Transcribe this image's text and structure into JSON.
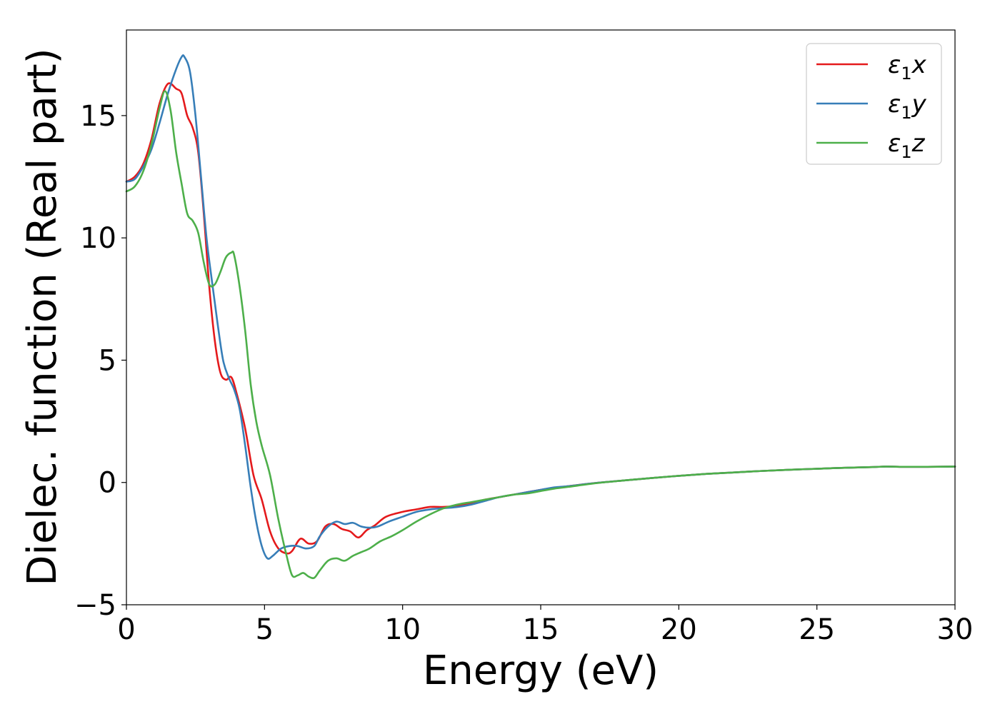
{
  "chart_data": {
    "type": "line",
    "title": "",
    "xlabel": "Energy (eV)",
    "ylabel": "Dielec. function (Real part)",
    "xlim": [
      0,
      30
    ],
    "ylim": [
      -5,
      18.5
    ],
    "xticks": [
      0,
      5,
      10,
      15,
      20,
      25,
      30
    ],
    "yticks": [
      -5,
      0,
      5,
      10,
      15
    ],
    "grid": false,
    "legend_position": "top-right",
    "series": [
      {
        "name": "ε₁x",
        "legend": {
          "sym": "ε",
          "sub": "1",
          "var": "x"
        },
        "color": "#e41a1c",
        "x": [
          0,
          0.3,
          0.6,
          0.9,
          1.2,
          1.5,
          1.8,
          2.0,
          2.2,
          2.4,
          2.6,
          2.8,
          3.0,
          3.2,
          3.4,
          3.6,
          3.8,
          4.0,
          4.3,
          4.6,
          4.9,
          5.2,
          5.5,
          5.8,
          6.0,
          6.3,
          6.6,
          6.9,
          7.2,
          7.5,
          7.8,
          8.1,
          8.4,
          8.7,
          9.0,
          9.4,
          10.0,
          10.5,
          11.0,
          11.5,
          12.0,
          12.5,
          13.0,
          13.5,
          14.0,
          14.5,
          15.0,
          15.5,
          16.0,
          17.0,
          18.0,
          19.0,
          20.0,
          21.0,
          22.0,
          23.0,
          24.0,
          25.0,
          26.0,
          27.0,
          27.5,
          28.0,
          29.0,
          30.0
        ],
        "y": [
          12.3,
          12.5,
          13.0,
          14.0,
          15.5,
          16.3,
          16.1,
          15.9,
          15.0,
          14.5,
          13.5,
          11.0,
          8.0,
          5.8,
          4.5,
          4.2,
          4.3,
          3.6,
          2.2,
          0.3,
          -0.7,
          -2.0,
          -2.7,
          -2.9,
          -2.8,
          -2.3,
          -2.5,
          -2.4,
          -1.8,
          -1.7,
          -1.9,
          -2.0,
          -2.25,
          -1.95,
          -1.75,
          -1.4,
          -1.2,
          -1.1,
          -1.0,
          -1.0,
          -0.95,
          -0.85,
          -0.7,
          -0.6,
          -0.5,
          -0.4,
          -0.3,
          -0.22,
          -0.15,
          -0.02,
          0.08,
          0.18,
          0.27,
          0.35,
          0.41,
          0.47,
          0.52,
          0.56,
          0.6,
          0.63,
          0.65,
          0.64,
          0.64,
          0.65
        ]
      },
      {
        "name": "ε₁y",
        "legend": {
          "sym": "ε",
          "sub": "1",
          "var": "y"
        },
        "color": "#377eb8",
        "x": [
          0,
          0.3,
          0.6,
          0.9,
          1.2,
          1.5,
          1.8,
          2.0,
          2.1,
          2.3,
          2.5,
          2.7,
          2.9,
          3.1,
          3.3,
          3.5,
          3.7,
          3.9,
          4.1,
          4.3,
          4.5,
          4.7,
          4.9,
          5.1,
          5.3,
          5.6,
          5.9,
          6.2,
          6.5,
          6.8,
          7.0,
          7.3,
          7.6,
          7.9,
          8.2,
          8.5,
          8.8,
          9.1,
          9.5,
          10.0,
          10.5,
          11.0,
          11.5,
          12.0,
          12.5,
          13.0,
          13.5,
          14.0,
          14.5,
          15.0,
          15.5,
          16.0,
          17.0,
          18.0,
          19.0,
          20.0,
          21.0,
          22.0,
          23.0,
          24.0,
          25.0,
          26.0,
          27.0,
          27.5,
          28.0,
          29.0,
          30.0
        ],
        "y": [
          12.3,
          12.4,
          12.9,
          13.6,
          14.7,
          15.9,
          16.9,
          17.4,
          17.4,
          16.8,
          15.0,
          12.5,
          10.0,
          8.2,
          6.5,
          5.0,
          4.3,
          3.8,
          3.0,
          1.5,
          -0.2,
          -1.6,
          -2.6,
          -3.1,
          -3.0,
          -2.7,
          -2.6,
          -2.6,
          -2.7,
          -2.6,
          -2.2,
          -1.8,
          -1.6,
          -1.7,
          -1.65,
          -1.8,
          -1.85,
          -1.8,
          -1.6,
          -1.4,
          -1.2,
          -1.1,
          -1.05,
          -1.0,
          -0.9,
          -0.75,
          -0.6,
          -0.5,
          -0.4,
          -0.3,
          -0.2,
          -0.15,
          -0.02,
          0.08,
          0.18,
          0.27,
          0.35,
          0.41,
          0.47,
          0.52,
          0.56,
          0.6,
          0.63,
          0.65,
          0.64,
          0.64,
          0.65
        ]
      },
      {
        "name": "ε₁z",
        "legend": {
          "sym": "ε",
          "sub": "1",
          "var": "z"
        },
        "color": "#4daf4a",
        "x": [
          0,
          0.3,
          0.6,
          0.9,
          1.2,
          1.4,
          1.6,
          1.8,
          2.0,
          2.2,
          2.4,
          2.6,
          2.8,
          3.0,
          3.2,
          3.4,
          3.6,
          3.8,
          3.9,
          4.1,
          4.3,
          4.5,
          4.7,
          4.9,
          5.2,
          5.5,
          5.8,
          6.0,
          6.2,
          6.4,
          6.6,
          6.8,
          7.0,
          7.3,
          7.6,
          7.9,
          8.2,
          8.5,
          8.8,
          9.2,
          9.6,
          10.0,
          10.5,
          11.0,
          11.5,
          12.0,
          12.5,
          13.0,
          13.5,
          14.0,
          14.5,
          15.0,
          15.5,
          16.0,
          17.0,
          18.0,
          19.0,
          20.0,
          21.0,
          22.0,
          23.0,
          24.0,
          25.0,
          26.0,
          27.0,
          27.5,
          28.0,
          29.0,
          30.0
        ],
        "y": [
          11.9,
          12.1,
          12.7,
          13.8,
          15.3,
          16.0,
          15.2,
          13.5,
          12.2,
          11.0,
          10.7,
          10.2,
          9.0,
          8.1,
          8.1,
          8.6,
          9.2,
          9.4,
          9.3,
          8.0,
          6.2,
          4.0,
          2.5,
          1.5,
          0.3,
          -1.5,
          -3.0,
          -3.8,
          -3.8,
          -3.7,
          -3.85,
          -3.9,
          -3.6,
          -3.2,
          -3.1,
          -3.2,
          -3.0,
          -2.85,
          -2.7,
          -2.4,
          -2.2,
          -1.95,
          -1.6,
          -1.3,
          -1.05,
          -0.9,
          -0.8,
          -0.7,
          -0.6,
          -0.5,
          -0.45,
          -0.35,
          -0.25,
          -0.18,
          -0.03,
          0.08,
          0.18,
          0.27,
          0.35,
          0.41,
          0.47,
          0.52,
          0.56,
          0.6,
          0.63,
          0.65,
          0.64,
          0.64,
          0.65
        ]
      }
    ]
  }
}
